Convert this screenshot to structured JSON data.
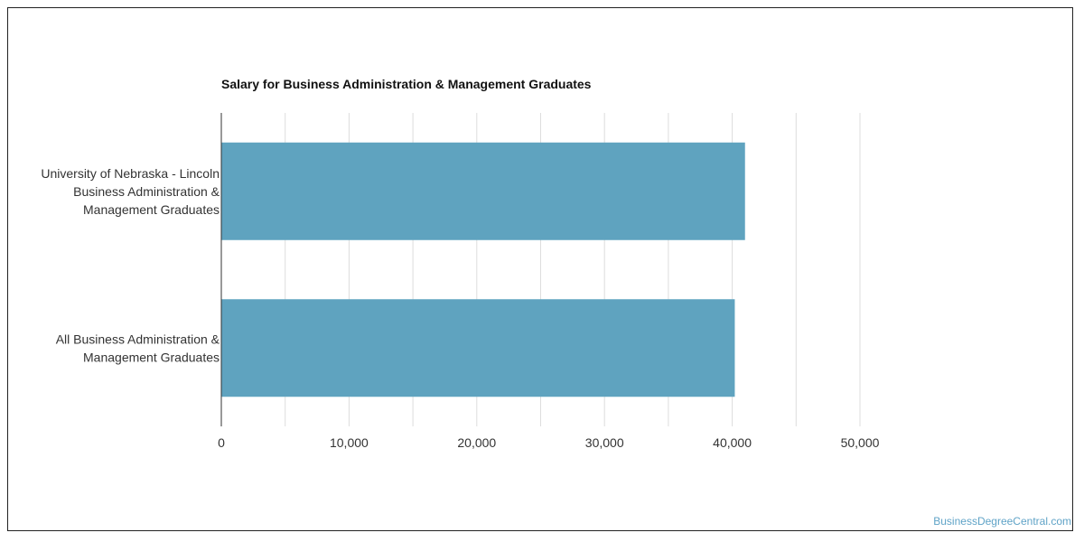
{
  "chart_data": {
    "type": "bar",
    "orientation": "horizontal",
    "title": "Salary for Business Administration & Management Graduates",
    "categories": [
      [
        "University of Nebraska - Lincoln",
        "Business Administration &",
        "Management Graduates"
      ],
      [
        "All Business Administration &",
        "Management Graduates"
      ]
    ],
    "values": [
      41000,
      40200
    ],
    "xlim": [
      0,
      50000
    ],
    "xticks": [
      0,
      10000,
      20000,
      30000,
      40000,
      50000
    ],
    "xtick_labels": [
      "0",
      "10,000",
      "20,000",
      "30,000",
      "40,000",
      "50,000"
    ],
    "grid": true,
    "bar_color": "#5fa3bf",
    "xlabel": "",
    "ylabel": ""
  },
  "watermark": "BusinessDegreeCentral.com"
}
